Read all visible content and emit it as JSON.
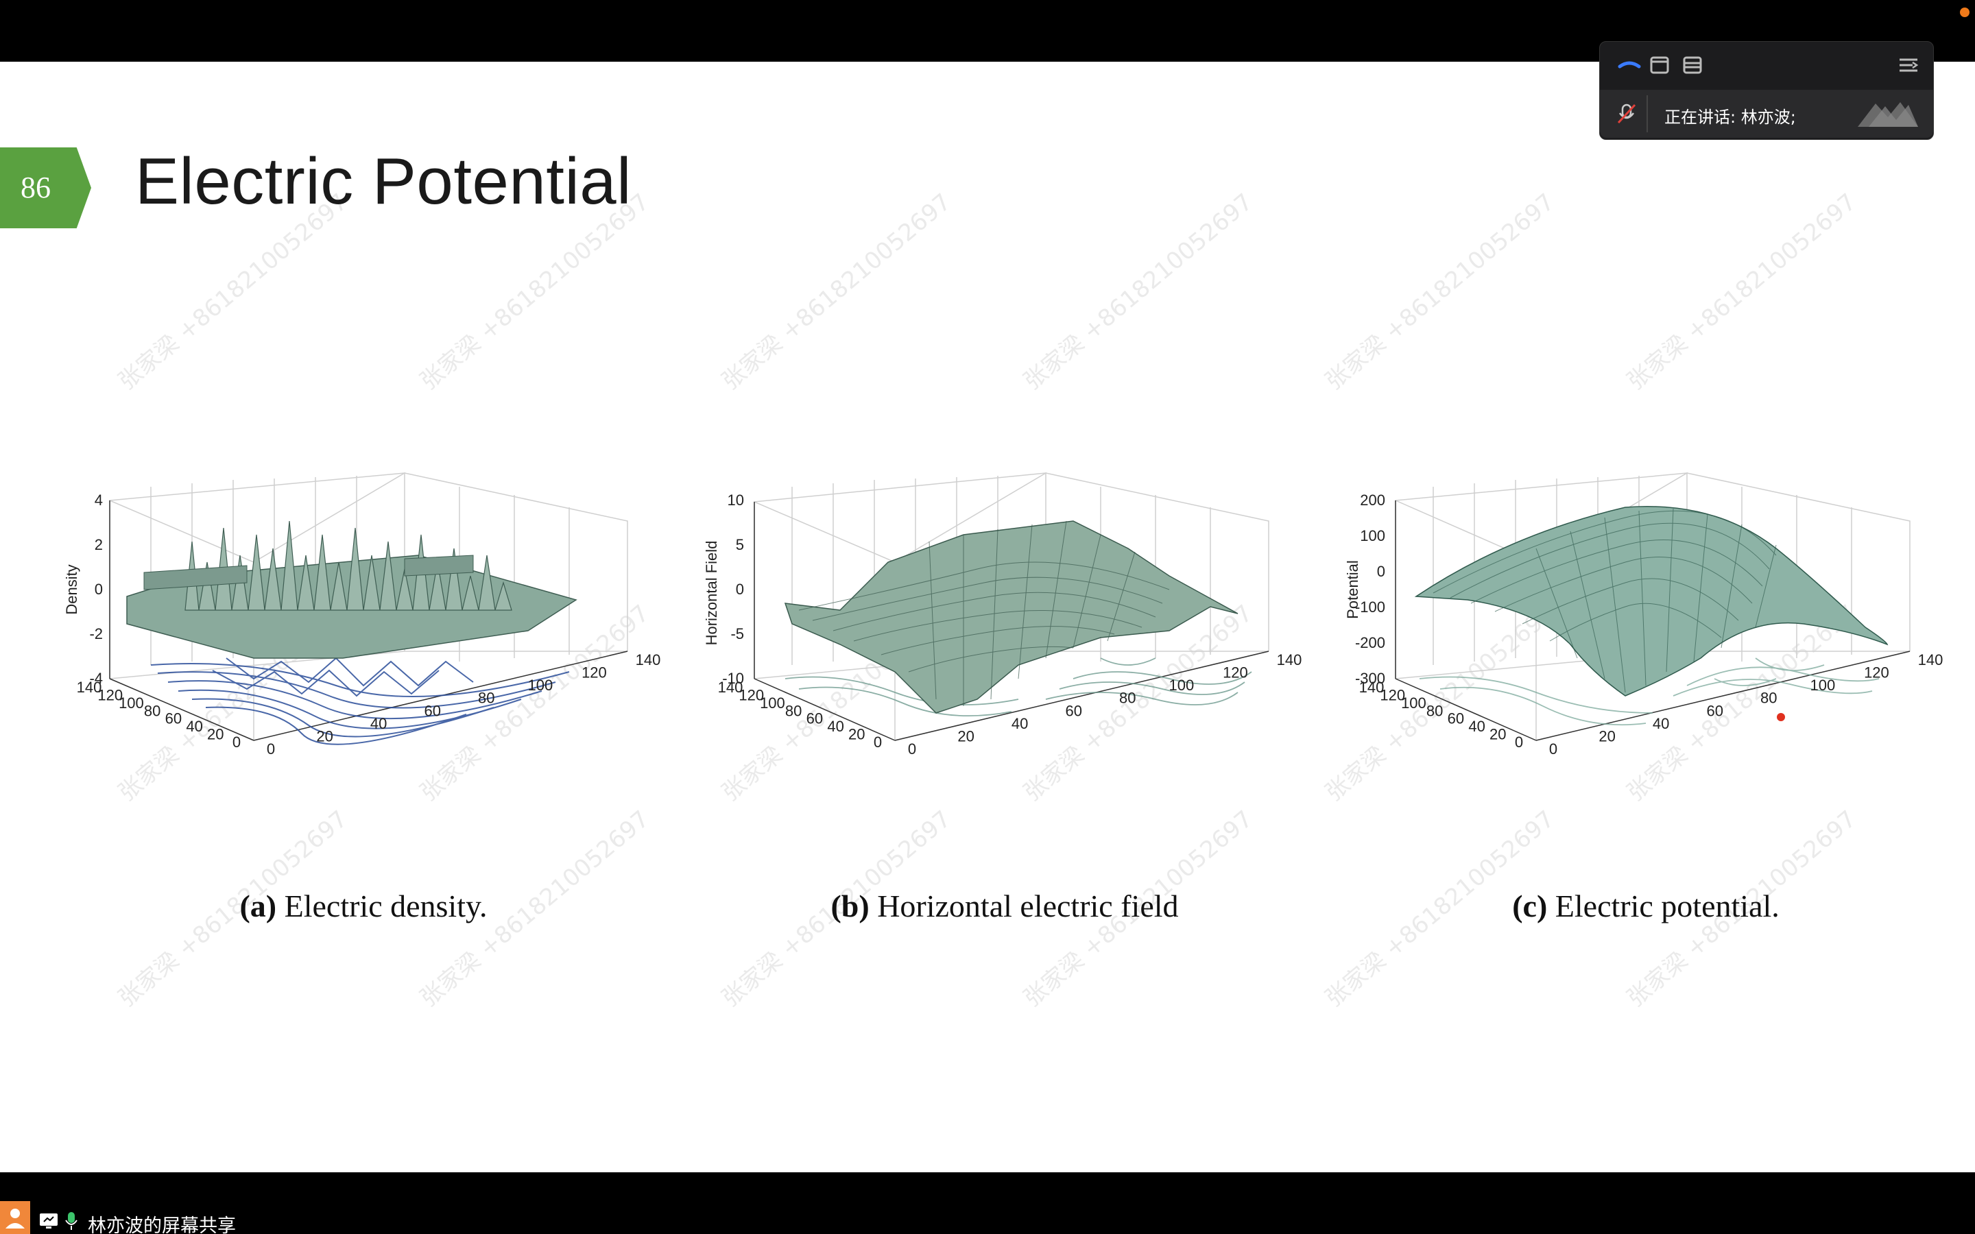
{
  "slide": {
    "number": "86",
    "title": "Electric Potential",
    "watermark": "张家梁 +8618210052697"
  },
  "panels": [
    {
      "caption_tag": "(a)",
      "caption_text": "Electric density.",
      "zlabel": "Density",
      "z_ticks": [
        "4",
        "2",
        "0",
        "-2",
        "-4"
      ],
      "x_ticks": [
        "0",
        "20",
        "40",
        "60",
        "80",
        "100",
        "120",
        "140"
      ],
      "y_ticks": [
        "140",
        "120",
        "100",
        "80",
        "60",
        "40",
        "20",
        "0"
      ]
    },
    {
      "caption_tag": "(b)",
      "caption_text": "Horizontal electric field",
      "zlabel": "Horizontal Field",
      "z_ticks": [
        "10",
        "5",
        "0",
        "-5",
        "-10"
      ],
      "x_ticks": [
        "0",
        "20",
        "40",
        "60",
        "80",
        "100",
        "120",
        "140"
      ],
      "y_ticks": [
        "140",
        "120",
        "100",
        "80",
        "60",
        "40",
        "20",
        "0"
      ]
    },
    {
      "caption_tag": "(c)",
      "caption_text": "Electric potential.",
      "zlabel": "Potential",
      "z_ticks": [
        "200",
        "100",
        "0",
        "-100",
        "-200",
        "-300"
      ],
      "x_ticks": [
        "0",
        "20",
        "40",
        "60",
        "80",
        "100",
        "120",
        "140"
      ],
      "y_ticks": [
        "140",
        "120",
        "100",
        "80",
        "60",
        "40",
        "20",
        "0"
      ]
    }
  ],
  "meeting": {
    "speaking_text": "正在讲话: 林亦波;",
    "screen_share_label": "林亦波的屏幕共享"
  },
  "colors": {
    "slide_number_bg": "#5aa140",
    "surface": "#5f8a7a",
    "contour": "#2a4d9a"
  }
}
